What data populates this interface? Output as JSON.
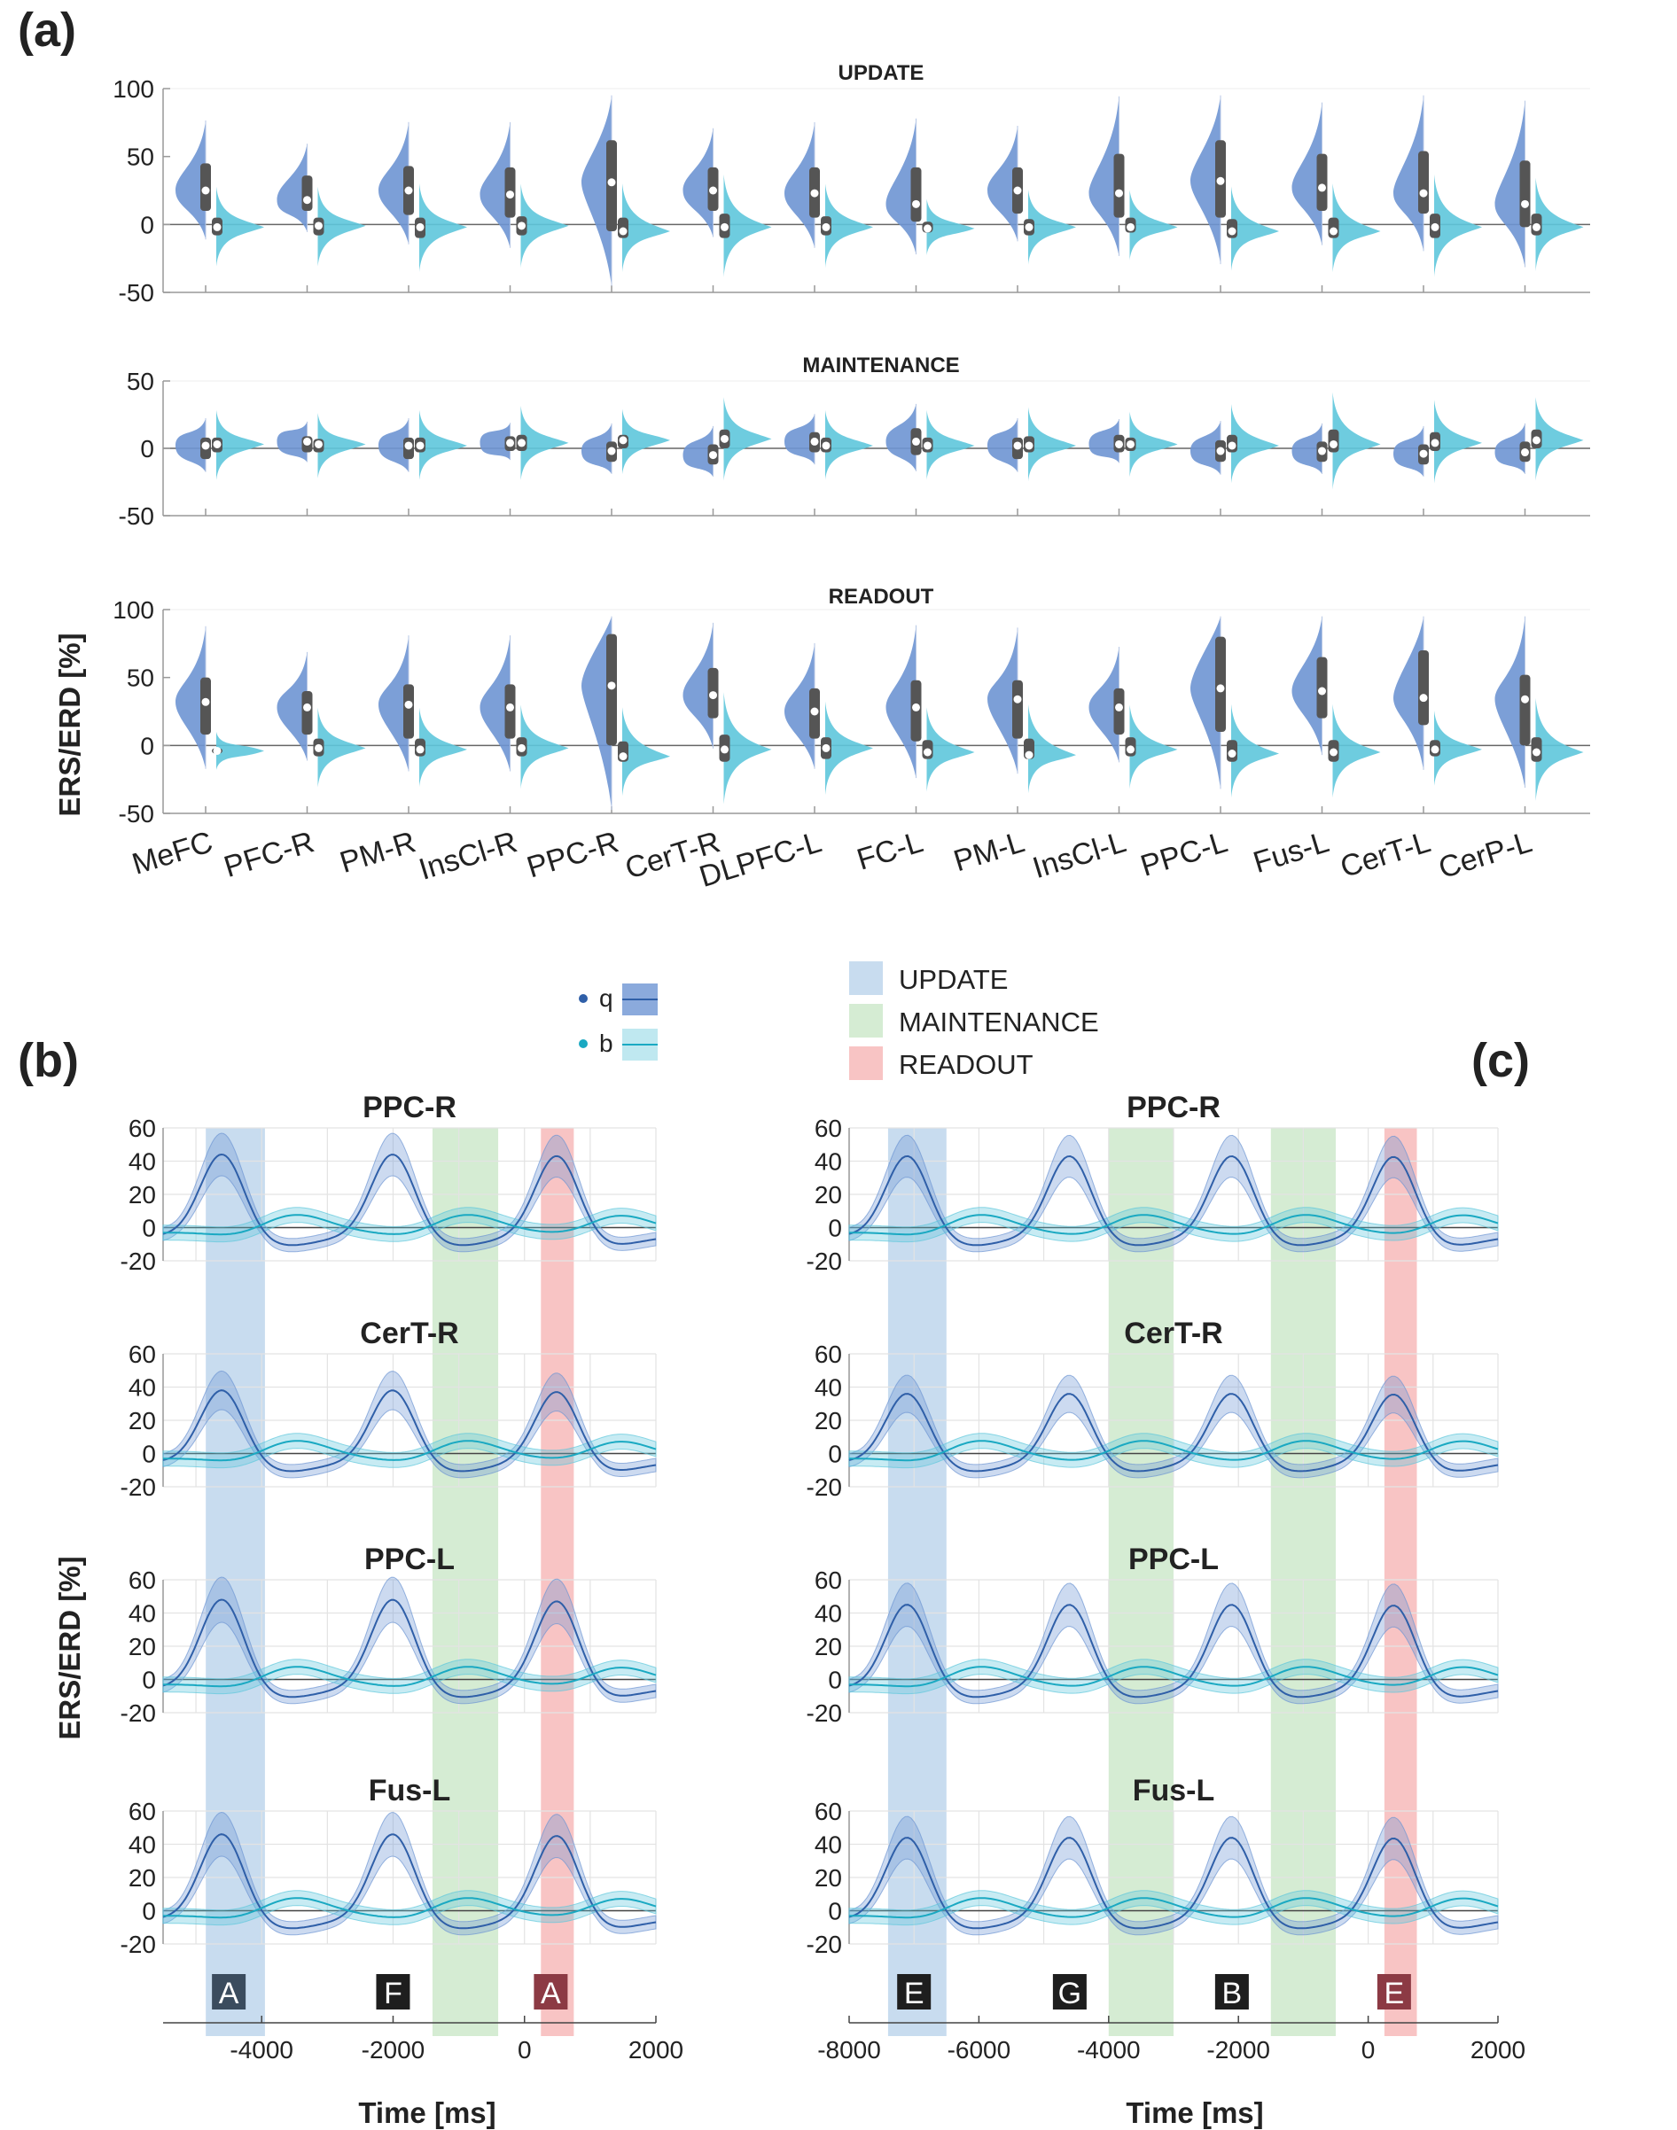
{
  "figure": {
    "panel_labels": [
      "(a)",
      "(b)",
      "(c)"
    ],
    "colors": {
      "q": "#6e95d3",
      "q_line": "#2f5fa8",
      "b": "#5ec7dc",
      "b_line": "#1aa9c2",
      "update": "#c8dcef",
      "maintenance": "#d5ecd3",
      "readout": "#f8c4c4",
      "box": "#555555"
    }
  },
  "violin": {
    "ylabel": "ERS/ERD [%]",
    "categories": [
      "MeFC",
      "PFC-R",
      "PM-R",
      "InsCl-R",
      "PPC-R",
      "CerT-R",
      "DLPFC-L",
      "FC-L",
      "PM-L",
      "InsCl-L",
      "PPC-L",
      "Fus-L",
      "CerT-L",
      "CerP-L"
    ],
    "panels": [
      {
        "title": "UPDATE",
        "ylim": [
          -50,
          100
        ],
        "yticks": [
          100,
          50,
          0,
          -50
        ],
        "q_median": [
          25,
          18,
          25,
          22,
          31,
          25,
          23,
          15,
          25,
          23,
          32,
          27,
          23,
          15
        ],
        "q_iqr": [
          [
            10,
            45
          ],
          [
            10,
            36
          ],
          [
            7,
            43
          ],
          [
            5,
            42
          ],
          [
            -5,
            62
          ],
          [
            10,
            42
          ],
          [
            5,
            42
          ],
          [
            2,
            42
          ],
          [
            8,
            42
          ],
          [
            5,
            52
          ],
          [
            5,
            62
          ],
          [
            10,
            52
          ],
          [
            8,
            54
          ],
          [
            -2,
            47
          ]
        ],
        "b_median": [
          -2,
          -1,
          -2,
          -1,
          -5,
          -2,
          -2,
          -3,
          -2,
          -2,
          -5,
          -5,
          -2,
          -2
        ],
        "b_iqr": [
          [
            -8,
            5
          ],
          [
            -8,
            5
          ],
          [
            -10,
            5
          ],
          [
            -8,
            6
          ],
          [
            -10,
            5
          ],
          [
            -10,
            8
          ],
          [
            -8,
            6
          ],
          [
            -6,
            2
          ],
          [
            -8,
            4
          ],
          [
            -6,
            5
          ],
          [
            -10,
            4
          ],
          [
            -10,
            5
          ],
          [
            -10,
            8
          ],
          [
            -8,
            8
          ]
        ]
      },
      {
        "title": "MAINTENANCE",
        "ylim": [
          -50,
          50
        ],
        "yticks": [
          50,
          0,
          -50
        ],
        "q_median": [
          2,
          5,
          2,
          4,
          -2,
          -5,
          5,
          5,
          2,
          3,
          -2,
          -2,
          -4,
          -3
        ],
        "q_iqr": [
          [
            -8,
            8
          ],
          [
            -3,
            9
          ],
          [
            -8,
            8
          ],
          [
            -2,
            9
          ],
          [
            -10,
            5
          ],
          [
            -12,
            3
          ],
          [
            -3,
            12
          ],
          [
            -5,
            15
          ],
          [
            -8,
            8
          ],
          [
            -3,
            10
          ],
          [
            -10,
            6
          ],
          [
            -10,
            5
          ],
          [
            -12,
            3
          ],
          [
            -10,
            5
          ]
        ],
        "b_median": [
          3,
          3,
          2,
          4,
          6,
          7,
          2,
          2,
          2,
          3,
          2,
          3,
          4,
          6
        ],
        "b_iqr": [
          [
            -3,
            8
          ],
          [
            -3,
            7
          ],
          [
            -3,
            8
          ],
          [
            -2,
            10
          ],
          [
            0,
            10
          ],
          [
            0,
            14
          ],
          [
            -3,
            8
          ],
          [
            -3,
            8
          ],
          [
            -3,
            9
          ],
          [
            -2,
            8
          ],
          [
            -3,
            10
          ],
          [
            -3,
            14
          ],
          [
            -2,
            12
          ],
          [
            0,
            14
          ]
        ]
      },
      {
        "title": "READOUT",
        "ylim": [
          -50,
          100
        ],
        "yticks": [
          100,
          50,
          0,
          -50
        ],
        "q_median": [
          32,
          28,
          30,
          28,
          44,
          37,
          25,
          28,
          34,
          28,
          42,
          40,
          35,
          34
        ],
        "q_iqr": [
          [
            8,
            50
          ],
          [
            8,
            40
          ],
          [
            5,
            45
          ],
          [
            5,
            45
          ],
          [
            0,
            82
          ],
          [
            20,
            57
          ],
          [
            5,
            42
          ],
          [
            3,
            48
          ],
          [
            5,
            48
          ],
          [
            8,
            42
          ],
          [
            10,
            80
          ],
          [
            20,
            65
          ],
          [
            15,
            70
          ],
          [
            0,
            52
          ]
        ],
        "b_median": [
          -4,
          -2,
          -3,
          -2,
          -8,
          -3,
          -2,
          -5,
          -7,
          -3,
          -6,
          -5,
          -3,
          -5
        ],
        "b_iqr": [
          [
            -6,
            -2
          ],
          [
            -8,
            5
          ],
          [
            -8,
            5
          ],
          [
            -8,
            6
          ],
          [
            -12,
            3
          ],
          [
            -12,
            8
          ],
          [
            -10,
            6
          ],
          [
            -10,
            4
          ],
          [
            -10,
            5
          ],
          [
            -8,
            6
          ],
          [
            -12,
            4
          ],
          [
            -12,
            4
          ],
          [
            -8,
            4
          ],
          [
            -12,
            6
          ]
        ]
      }
    ]
  },
  "legend": {
    "q_label": "q",
    "b_label": "b",
    "phases": [
      "UPDATE",
      "MAINTENANCE",
      "READOUT"
    ]
  },
  "timecourse": {
    "ylabel": "ERS/ERD [%]",
    "xlabel": "Time [ms]",
    "yticks": [
      60,
      40,
      20,
      0,
      -20
    ],
    "ylim": [
      -20,
      60
    ],
    "rois": [
      "PPC-R",
      "CerT-R",
      "PPC-L",
      "Fus-L"
    ],
    "b": {
      "xlim": [
        -5500,
        2000
      ],
      "xticks": [
        -4000,
        -2000,
        0,
        2000
      ],
      "q_peaks": [
        -4600,
        -2000,
        500
      ],
      "q_amp": [
        45,
        39,
        49,
        47
      ],
      "b_peaks": [
        -3500,
        -900,
        1400
      ],
      "shades": [
        {
          "phase": "update",
          "from": -4850,
          "to": -3950
        },
        {
          "phase": "maintenance",
          "from": -1400,
          "to": -400
        },
        {
          "phase": "readout",
          "from": 250,
          "to": 750
        }
      ],
      "stimuli": [
        {
          "label": "A",
          "t": -4500,
          "style": "update"
        },
        {
          "label": "F",
          "t": -2000,
          "style": "plain"
        },
        {
          "label": "A",
          "t": 400,
          "style": "readout"
        }
      ]
    },
    "c": {
      "xlim": [
        -8000,
        2000
      ],
      "xticks": [
        -8000,
        -6000,
        -4000,
        -2000,
        0,
        2000
      ],
      "q_peaks": [
        -7100,
        -4600,
        -2100,
        400
      ],
      "q_amp": [
        44,
        37,
        46,
        45
      ],
      "b_peaks": [
        -6000,
        -3500,
        -1000,
        1400
      ],
      "shades": [
        {
          "phase": "update",
          "from": -7400,
          "to": -6500
        },
        {
          "phase": "maintenance",
          "from": -4000,
          "to": -3000
        },
        {
          "phase": "maintenance",
          "from": -1500,
          "to": -500
        },
        {
          "phase": "readout",
          "from": 250,
          "to": 750
        }
      ],
      "stimuli": [
        {
          "label": "E",
          "t": -7000,
          "style": "plain"
        },
        {
          "label": "G",
          "t": -4600,
          "style": "plain"
        },
        {
          "label": "B",
          "t": -2100,
          "style": "plain"
        },
        {
          "label": "E",
          "t": 400,
          "style": "readout"
        }
      ]
    }
  }
}
